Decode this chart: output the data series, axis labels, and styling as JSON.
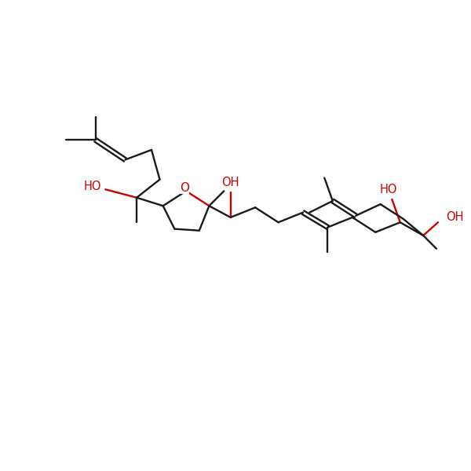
{
  "bg_color": "#ffffff",
  "bond_color": "#1a1a1a",
  "oh_color": "#cc0000",
  "line_width": 1.7,
  "font_size": 10.5,
  "figsize": [
    6.0,
    6.0
  ],
  "dpi": 100,
  "xlim": [
    -1,
    13
  ],
  "ylim": [
    1,
    12
  ]
}
